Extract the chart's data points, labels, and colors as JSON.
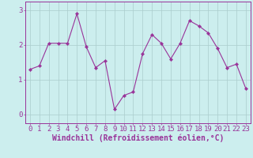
{
  "x": [
    0,
    1,
    2,
    3,
    4,
    5,
    6,
    7,
    8,
    9,
    10,
    11,
    12,
    13,
    14,
    15,
    16,
    17,
    18,
    19,
    20,
    21,
    22,
    23
  ],
  "y": [
    1.3,
    1.4,
    2.05,
    2.05,
    2.05,
    2.9,
    1.95,
    1.35,
    1.55,
    0.15,
    0.55,
    0.65,
    1.75,
    2.3,
    2.05,
    1.6,
    2.05,
    2.7,
    2.55,
    2.35,
    1.9,
    1.35,
    1.45,
    0.75
  ],
  "line_color": "#993399",
  "marker": "D",
  "marker_size": 2.2,
  "bg_color": "#cceeee",
  "grid_color": "#aacccc",
  "axis_color": "#993399",
  "tick_color": "#993399",
  "xlabel": "Windchill (Refroidissement éolien,°C)",
  "ylim": [
    -0.25,
    3.25
  ],
  "xlim": [
    -0.5,
    23.5
  ],
  "yticks": [
    0,
    1,
    2,
    3
  ],
  "xticks": [
    0,
    1,
    2,
    3,
    4,
    5,
    6,
    7,
    8,
    9,
    10,
    11,
    12,
    13,
    14,
    15,
    16,
    17,
    18,
    19,
    20,
    21,
    22,
    23
  ],
  "xlabel_fontsize": 7.0,
  "tick_fontsize": 6.5
}
